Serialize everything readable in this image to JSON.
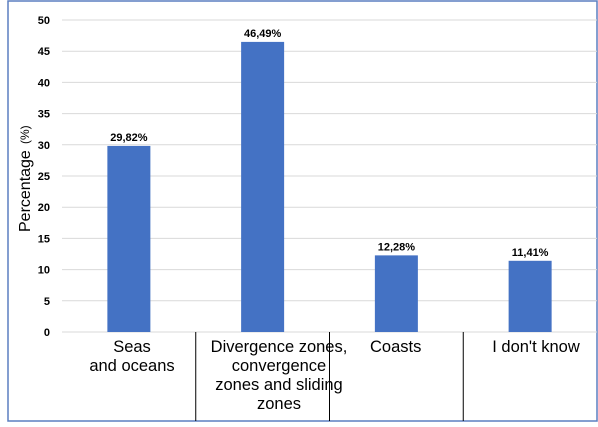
{
  "chart_data": {
    "type": "bar",
    "title": "",
    "xlabel": "",
    "ylabel": "Percentage",
    "ylabel_unit": "(%)",
    "ylim": [
      0,
      50
    ],
    "yticks": [
      "0",
      "5",
      "10",
      "15",
      "20",
      "25",
      "30",
      "35",
      "40",
      "45",
      "50"
    ],
    "categories": [
      "Seas\nand oceans",
      "Divergence zones,\nconvergence\nzones and sliding\nzones",
      "Coasts",
      "I don't know"
    ],
    "values": [
      29.82,
      46.49,
      12.28,
      11.41
    ],
    "data_labels": [
      "29,82%",
      "46,49%",
      "12,28%",
      "11,41%"
    ],
    "bar_color": "#4472C4",
    "grid": true,
    "gridline_color": "#D9D9D9",
    "frame_color": "#5B7FC0"
  }
}
